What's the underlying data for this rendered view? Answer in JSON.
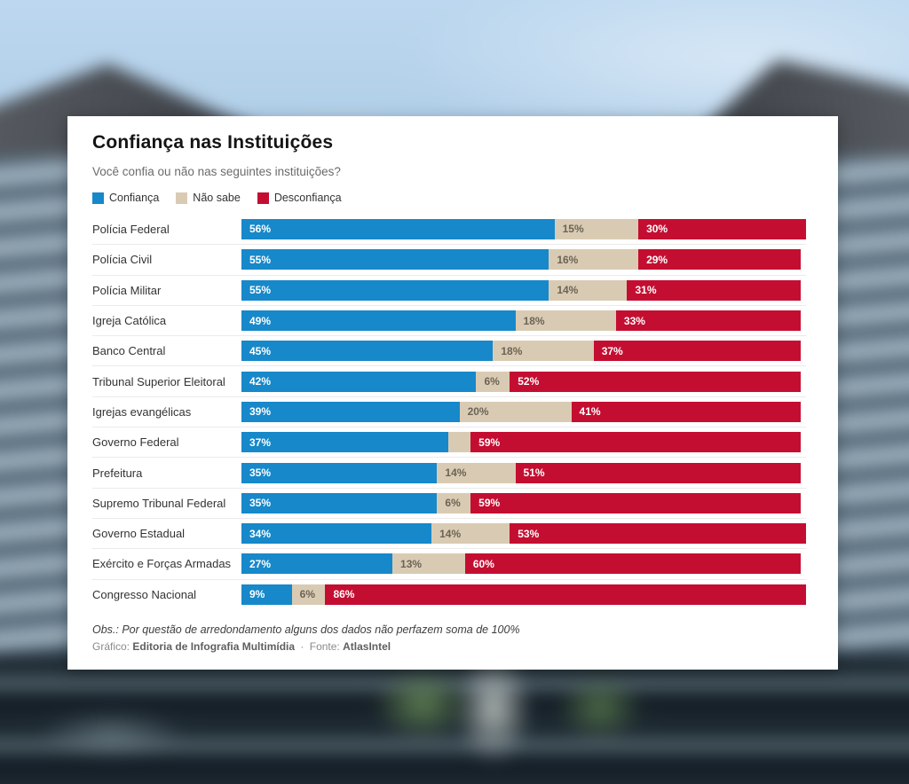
{
  "background": {
    "description": "blurred photo of a modern glass-and-concrete office building under a light blue sky",
    "sky_color": "#b5d1ea",
    "building_dark": "#42464c",
    "building_light": "#b2c4d0"
  },
  "card": {
    "title": "Confiança nas Instituições",
    "subtitle": "Você confia ou não nas seguintes instituições?",
    "note": "Obs.: Por questão de arredondamento alguns dos dados não perfazem soma de 100%",
    "credit": {
      "prefix": "Gráfico:",
      "author": "Editoria de Infografia Multimídia",
      "separator": "·",
      "source_prefix": "Fonte:",
      "source": "AtlasIntel"
    }
  },
  "colors": {
    "confianca": "#1788c9",
    "nao_sabe": "#d9cbb3",
    "desconfianca": "#c40e31"
  },
  "legend": [
    {
      "key": "confianca",
      "label": "Confiança"
    },
    {
      "key": "nao_sabe",
      "label": "Não sabe"
    },
    {
      "key": "desconfianca",
      "label": "Desconfiança"
    }
  ],
  "chart_data": {
    "type": "bar",
    "orientation": "horizontal-stacked",
    "scale_max": 101,
    "categories": [
      "Polícia Federal",
      "Polícia Civil",
      "Polícia Militar",
      "Igreja Católica",
      "Banco Central",
      "Tribunal Superior Eleitoral",
      "Igrejas evangélicas",
      "Governo Federal",
      "Prefeitura",
      "Supremo Tribunal Federal",
      "Governo Estadual",
      "Exército e Forças Armadas",
      "Congresso Nacional"
    ],
    "series": [
      {
        "name": "Confiança",
        "values": [
          56,
          55,
          55,
          49,
          45,
          42,
          39,
          37,
          35,
          35,
          34,
          27,
          9
        ]
      },
      {
        "name": "Não sabe",
        "values": [
          15,
          16,
          14,
          18,
          18,
          6,
          20,
          4,
          14,
          6,
          14,
          13,
          6
        ]
      },
      {
        "name": "Desconfiança",
        "values": [
          30,
          29,
          31,
          33,
          37,
          52,
          41,
          59,
          51,
          59,
          53,
          60,
          86
        ]
      }
    ],
    "rows": [
      {
        "label": "Polícia Federal",
        "segments": [
          {
            "key": "confianca",
            "value": 56,
            "text": "56%"
          },
          {
            "key": "nao_sabe",
            "value": 15,
            "text": "15%"
          },
          {
            "key": "desconfianca",
            "value": 30,
            "text": "30%"
          }
        ]
      },
      {
        "label": "Polícia Civil",
        "segments": [
          {
            "key": "confianca",
            "value": 55,
            "text": "55%"
          },
          {
            "key": "nao_sabe",
            "value": 16,
            "text": "16%"
          },
          {
            "key": "desconfianca",
            "value": 29,
            "text": "29%"
          }
        ]
      },
      {
        "label": "Polícia Militar",
        "segments": [
          {
            "key": "confianca",
            "value": 55,
            "text": "55%"
          },
          {
            "key": "nao_sabe",
            "value": 14,
            "text": "14%"
          },
          {
            "key": "desconfianca",
            "value": 31,
            "text": "31%"
          }
        ]
      },
      {
        "label": "Igreja Católica",
        "segments": [
          {
            "key": "confianca",
            "value": 49,
            "text": "49%"
          },
          {
            "key": "nao_sabe",
            "value": 18,
            "text": "18%"
          },
          {
            "key": "desconfianca",
            "value": 33,
            "text": "33%"
          }
        ]
      },
      {
        "label": "Banco Central",
        "segments": [
          {
            "key": "confianca",
            "value": 45,
            "text": "45%"
          },
          {
            "key": "nao_sabe",
            "value": 18,
            "text": "18%"
          },
          {
            "key": "desconfianca",
            "value": 37,
            "text": "37%"
          }
        ]
      },
      {
        "label": "Tribunal Superior Eleitoral",
        "segments": [
          {
            "key": "confianca",
            "value": 42,
            "text": "42%"
          },
          {
            "key": "nao_sabe",
            "value": 6,
            "text": "6%"
          },
          {
            "key": "desconfianca",
            "value": 52,
            "text": "52%"
          }
        ]
      },
      {
        "label": "Igrejas evangélicas",
        "segments": [
          {
            "key": "confianca",
            "value": 39,
            "text": "39%"
          },
          {
            "key": "nao_sabe",
            "value": 20,
            "text": "20%"
          },
          {
            "key": "desconfianca",
            "value": 41,
            "text": "41%"
          }
        ]
      },
      {
        "label": "Governo Federal",
        "segments": [
          {
            "key": "confianca",
            "value": 37,
            "text": "37%"
          },
          {
            "key": "nao_sabe",
            "value": 4,
            "text": ""
          },
          {
            "key": "desconfianca",
            "value": 59,
            "text": "59%"
          }
        ]
      },
      {
        "label": "Prefeitura",
        "segments": [
          {
            "key": "confianca",
            "value": 35,
            "text": "35%"
          },
          {
            "key": "nao_sabe",
            "value": 14,
            "text": "14%"
          },
          {
            "key": "desconfianca",
            "value": 51,
            "text": "51%"
          }
        ]
      },
      {
        "label": "Supremo Tribunal Federal",
        "segments": [
          {
            "key": "confianca",
            "value": 35,
            "text": "35%"
          },
          {
            "key": "nao_sabe",
            "value": 6,
            "text": "6%"
          },
          {
            "key": "desconfianca",
            "value": 59,
            "text": "59%"
          }
        ]
      },
      {
        "label": "Governo Estadual",
        "segments": [
          {
            "key": "confianca",
            "value": 34,
            "text": "34%"
          },
          {
            "key": "nao_sabe",
            "value": 14,
            "text": "14%"
          },
          {
            "key": "desconfianca",
            "value": 53,
            "text": "53%"
          }
        ]
      },
      {
        "label": "Exército e Forças Armadas",
        "segments": [
          {
            "key": "confianca",
            "value": 27,
            "text": "27%"
          },
          {
            "key": "nao_sabe",
            "value": 13,
            "text": "13%"
          },
          {
            "key": "desconfianca",
            "value": 60,
            "text": "60%"
          }
        ]
      },
      {
        "label": "Congresso Nacional",
        "segments": [
          {
            "key": "confianca",
            "value": 9,
            "text": "9%"
          },
          {
            "key": "nao_sabe",
            "value": 6,
            "text": "6%"
          },
          {
            "key": "desconfianca",
            "value": 86,
            "text": "86%"
          }
        ]
      }
    ]
  }
}
